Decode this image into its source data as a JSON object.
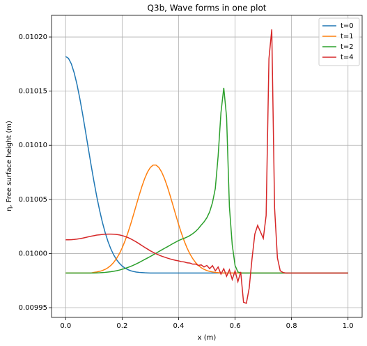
{
  "chart_data": {
    "type": "line",
    "title": "Q3b, Wave forms in one plot",
    "xlabel": "x (m)",
    "ylabel": "η, Free surface height (m)",
    "x": [
      0,
      0.01,
      0.02,
      0.03,
      0.04,
      0.05,
      0.06,
      0.07,
      0.08,
      0.09,
      0.1,
      0.11,
      0.12,
      0.13,
      0.14,
      0.15,
      0.16,
      0.17,
      0.18,
      0.19,
      0.2,
      0.21,
      0.22,
      0.23,
      0.24,
      0.25,
      0.26,
      0.27,
      0.28,
      0.29,
      0.3,
      0.31,
      0.32,
      0.33,
      0.34,
      0.35,
      0.36,
      0.37,
      0.38,
      0.39,
      0.4,
      0.41,
      0.42,
      0.43,
      0.44,
      0.45,
      0.46,
      0.47,
      0.48,
      0.49,
      0.5,
      0.51,
      0.52,
      0.53,
      0.54,
      0.55,
      0.56,
      0.57,
      0.58,
      0.59,
      0.6,
      0.61,
      0.62,
      0.63,
      0.64,
      0.65,
      0.66,
      0.67,
      0.68,
      0.69,
      0.7,
      0.71,
      0.72,
      0.73,
      0.74,
      0.75,
      0.76,
      0.77,
      0.78,
      0.79,
      0.8,
      0.81,
      0.82,
      0.83,
      0.84,
      0.85,
      0.86,
      0.87,
      0.88,
      0.89,
      0.9,
      0.91,
      0.92,
      0.93,
      0.94,
      0.95,
      0.96,
      0.97,
      0.98,
      0.99,
      1
    ],
    "series": [
      {
        "name": "t=0",
        "color": "#1f77b4",
        "values": [
          0.010182,
          0.0101803,
          0.0101753,
          0.0101671,
          0.0101564,
          0.0101434,
          0.0101289,
          0.0101134,
          0.0100975,
          0.0100819,
          0.0100669,
          0.0100529,
          0.0100402,
          0.010029,
          0.0100193,
          0.0100111,
          0.0100043,
          0.0099988,
          0.0099944,
          0.0099911,
          0.0099885,
          0.0099866,
          0.0099852,
          0.0099841,
          0.0099834,
          0.0099829,
          0.0099826,
          0.0099824,
          0.0099822,
          0.0099821,
          0.009982,
          0.009982,
          0.009982,
          0.009982,
          0.009982,
          0.009982,
          0.009982,
          0.009982,
          0.009982,
          0.009982,
          0.009982,
          0.009982,
          0.009982,
          0.009982,
          0.009982,
          0.009982,
          0.009982,
          0.009982,
          0.009982,
          0.009982,
          0.009982,
          0.009982,
          0.009982,
          0.009982,
          0.009982,
          0.009982,
          0.009982,
          0.009982,
          0.009982,
          0.009982,
          0.009982,
          0.009982,
          0.009982,
          0.009982,
          0.009982,
          0.009982,
          0.009982,
          0.009982,
          0.009982,
          0.009982,
          0.009982,
          0.009982,
          0.009982,
          0.009982,
          0.009982,
          0.009982,
          0.009982,
          0.009982,
          0.009982,
          0.009982,
          0.009982,
          0.009982,
          0.009982,
          0.009982,
          0.009982,
          0.009982,
          0.009982,
          0.009982,
          0.009982,
          0.009982,
          0.009982,
          0.009982,
          0.009982,
          0.009982,
          0.009982,
          0.009982,
          0.009982,
          0.009982,
          0.009982,
          0.009982,
          0.009982
        ]
      },
      {
        "name": "t=1",
        "color": "#ff7f0e",
        "values": [
          0.009982,
          0.009982,
          0.009982,
          0.009982,
          0.009982,
          0.009982,
          0.009982,
          0.009982,
          0.009982,
          0.009982,
          0.0099826,
          0.009983,
          0.0099835,
          0.0099843,
          0.0099854,
          0.0099869,
          0.009989,
          0.0099917,
          0.0099953,
          0.0099997,
          0.0100051,
          0.0100115,
          0.0100188,
          0.0100269,
          0.0100356,
          0.0100446,
          0.0100535,
          0.0100619,
          0.0100693,
          0.0100753,
          0.0100795,
          0.0100817,
          0.0100817,
          0.0100795,
          0.0100753,
          0.0100693,
          0.0100619,
          0.0100535,
          0.0100446,
          0.0100356,
          0.0100269,
          0.0100188,
          0.0100115,
          0.0100051,
          0.0099997,
          0.0099953,
          0.0099917,
          0.009989,
          0.0099869,
          0.0099854,
          0.0099843,
          0.0099835,
          0.009983,
          0.0099826,
          0.0099823,
          0.009982,
          0.009982,
          0.009982,
          0.009982,
          0.009982,
          0.009982,
          0.009982,
          0.009982,
          0.009982,
          0.009982,
          0.009982,
          0.009982,
          0.009982,
          0.009982,
          0.009982,
          0.009982,
          0.009982,
          0.009982,
          0.009982,
          0.009982,
          0.009982,
          0.009982,
          0.009982,
          0.009982,
          0.009982,
          0.009982,
          0.009982,
          0.009982,
          0.009982,
          0.009982,
          0.009982,
          0.009982,
          0.009982,
          0.009982,
          0.009982,
          0.009982,
          0.009982,
          0.009982,
          0.009982,
          0.009982,
          0.009982,
          0.009982,
          0.009982,
          0.009982,
          0.009982,
          0.009982
        ]
      },
      {
        "name": "t=2",
        "color": "#2ca02c",
        "values": [
          0.009982,
          0.009982,
          0.009982,
          0.009982,
          0.009982,
          0.009982,
          0.009982,
          0.009982,
          0.009982,
          0.009982,
          0.009982,
          0.0099821,
          0.0099822,
          0.0099824,
          0.0099826,
          0.0099829,
          0.0099832,
          0.0099836,
          0.0099841,
          0.0099847,
          0.0099854,
          0.0099862,
          0.0099871,
          0.0099881,
          0.0099892,
          0.0099904,
          0.0099917,
          0.0099931,
          0.0099945,
          0.0099959,
          0.0099973,
          0.0099988,
          0.0100003,
          0.0100018,
          0.0100033,
          0.0100048,
          0.0100062,
          0.0100077,
          0.0100092,
          0.0100106,
          0.010012,
          0.0100131,
          0.0100141,
          0.0100152,
          0.0100166,
          0.0100183,
          0.0100204,
          0.010023,
          0.0100262,
          0.0100292,
          0.010033,
          0.0100385,
          0.010047,
          0.01006,
          0.01009,
          0.01013,
          0.010153,
          0.010126,
          0.010043,
          0.010008,
          0.009989,
          0.009983,
          0.009982,
          0.009982,
          0.009982,
          0.009982,
          0.009982,
          0.009982,
          0.009982,
          0.009982,
          0.009982,
          0.009982,
          0.009982,
          0.009982,
          0.009982,
          0.009982,
          0.009982,
          0.009982,
          0.009982,
          0.009982,
          0.009982,
          0.009982,
          0.009982,
          0.009982,
          0.009982,
          0.009982,
          0.009982,
          0.009982,
          0.009982,
          0.009982,
          0.009982,
          0.009982,
          0.009982,
          0.009982,
          0.009982,
          0.009982,
          0.009982,
          0.009982,
          0.009982,
          0.009982,
          0.009982
        ]
      },
      {
        "name": "t=4",
        "color": "#d62728",
        "values": [
          0.0100127,
          0.0100127,
          0.0100128,
          0.010013,
          0.0100133,
          0.0100137,
          0.0100142,
          0.0100148,
          0.0100154,
          0.010016,
          0.0100165,
          0.010017,
          0.0100173,
          0.0100176,
          0.0100178,
          0.0100179,
          0.0100179,
          0.0100178,
          0.0100176,
          0.0100172,
          0.0100166,
          0.0100158,
          0.0100148,
          0.0100136,
          0.0100122,
          0.0100107,
          0.0100091,
          0.0100074,
          0.0100057,
          0.0100041,
          0.0100025,
          0.0100011,
          0.0099998,
          0.0099986,
          0.0099976,
          0.0099967,
          0.0099958,
          0.009995,
          0.0099943,
          0.0099937,
          0.0099932,
          0.0099925,
          0.0099922,
          0.0099914,
          0.0099912,
          0.0099902,
          0.0099903,
          0.009989,
          0.0099895,
          0.0099876,
          0.009989,
          0.009986,
          0.0099888,
          0.009984,
          0.0099875,
          0.009981,
          0.009986,
          0.009979,
          0.009985,
          0.009976,
          0.009984,
          0.009974,
          0.009983,
          0.009955,
          0.009954,
          0.009968,
          0.009995,
          0.010018,
          0.010026,
          0.01002,
          0.010014,
          0.010035,
          0.01018,
          0.010207,
          0.010042,
          0.009996,
          0.009984,
          0.0099825,
          0.009982,
          0.009982,
          0.009982,
          0.009982,
          0.009982,
          0.009982,
          0.009982,
          0.009982,
          0.009982,
          0.009982,
          0.009982,
          0.009982,
          0.009982,
          0.009982,
          0.009982,
          0.009982,
          0.009982,
          0.009982,
          0.009982,
          0.009982,
          0.009982,
          0.009982,
          0.009982
        ]
      }
    ],
    "xlim": [
      -0.05,
      1.05
    ],
    "ylim": [
      0.009941,
      0.01022
    ],
    "xticks": [
      {
        "value": 0,
        "label": "0.0"
      },
      0.2,
      0.4,
      0.6,
      0.8,
      {
        "value": 1,
        "label": "1.0"
      }
    ],
    "yticks": [
      0.00995,
      {
        "value": 0.01,
        "label": "0.01000"
      },
      0.01005,
      {
        "value": 0.0101,
        "label": "0.01010"
      },
      0.01015,
      {
        "value": 0.0102,
        "label": "0.01020"
      }
    ],
    "grid": true,
    "legend": "upper right"
  }
}
